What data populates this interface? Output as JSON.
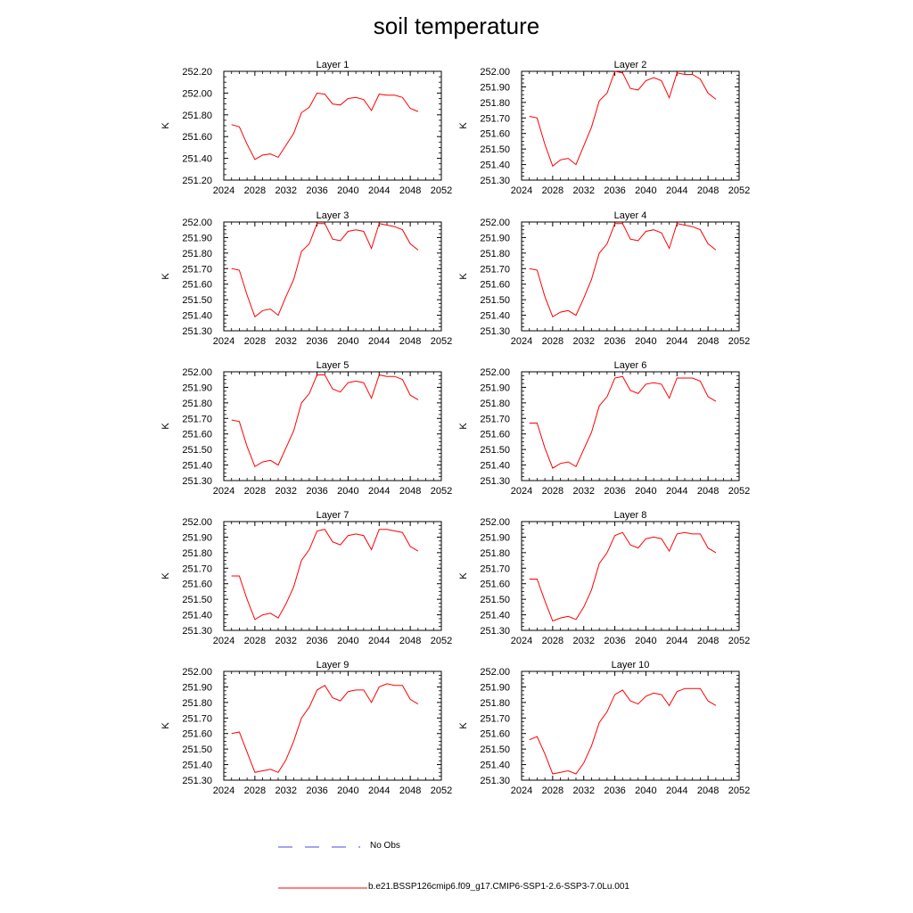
{
  "title": "soil temperature",
  "chart_data": [
    {
      "type": "line",
      "title": "Layer 1",
      "ylabel": "K",
      "xlim": [
        2024,
        2052
      ],
      "ylim": [
        251.2,
        252.2
      ],
      "xticks": [
        2024,
        2028,
        2032,
        2036,
        2040,
        2044,
        2048,
        2052
      ],
      "xticklabels": [
        "2024",
        "2028",
        "2032",
        "2036",
        "2040",
        "2044",
        "2048",
        "2052"
      ],
      "yticks": [
        251.2,
        251.4,
        251.6,
        251.8,
        252.0,
        252.2
      ],
      "yticklabels": [
        "251.20",
        "251.40",
        "251.60",
        "251.80",
        "252.00",
        "252.20"
      ],
      "x": [
        2025,
        2026,
        2027,
        2028,
        2029,
        2030,
        2031,
        2032,
        2033,
        2034,
        2035,
        2036,
        2037,
        2038,
        2039,
        2040,
        2041,
        2042,
        2043,
        2044,
        2045,
        2046,
        2047,
        2048,
        2049
      ],
      "y": [
        251.71,
        251.69,
        251.53,
        251.39,
        251.43,
        251.44,
        251.41,
        251.52,
        251.63,
        251.82,
        251.87,
        252.0,
        251.99,
        251.9,
        251.89,
        251.95,
        251.96,
        251.94,
        251.84,
        251.99,
        251.98,
        251.98,
        251.96,
        251.86,
        251.83
      ]
    },
    {
      "type": "line",
      "title": "Layer 2",
      "ylabel": "K",
      "xlim": [
        2024,
        2052
      ],
      "ylim": [
        251.3,
        252.0
      ],
      "xticks": [
        2024,
        2028,
        2032,
        2036,
        2040,
        2044,
        2048,
        2052
      ],
      "xticklabels": [
        "2024",
        "2028",
        "2032",
        "2036",
        "2040",
        "2044",
        "2048",
        "2052"
      ],
      "yticks": [
        251.3,
        251.4,
        251.5,
        251.6,
        251.7,
        251.8,
        251.9,
        252.0
      ],
      "yticklabels": [
        "251.30",
        "251.40",
        "251.50",
        "251.60",
        "251.70",
        "251.80",
        "251.90",
        "252.00"
      ],
      "x": [
        2025,
        2026,
        2027,
        2028,
        2029,
        2030,
        2031,
        2032,
        2033,
        2034,
        2035,
        2036,
        2037,
        2038,
        2039,
        2040,
        2041,
        2042,
        2043,
        2044,
        2045,
        2046,
        2047,
        2048,
        2049
      ],
      "y": [
        251.71,
        251.7,
        251.53,
        251.39,
        251.43,
        251.44,
        251.4,
        251.52,
        251.64,
        251.81,
        251.86,
        252.0,
        251.99,
        251.89,
        251.88,
        251.94,
        251.96,
        251.94,
        251.83,
        251.99,
        251.98,
        251.98,
        251.95,
        251.86,
        251.82
      ]
    },
    {
      "type": "line",
      "title": "Layer 3",
      "ylabel": "K",
      "xlim": [
        2024,
        2052
      ],
      "ylim": [
        251.3,
        252.0
      ],
      "xticks": [
        2024,
        2028,
        2032,
        2036,
        2040,
        2044,
        2048,
        2052
      ],
      "xticklabels": [
        "2024",
        "2028",
        "2032",
        "2036",
        "2040",
        "2044",
        "2048",
        "2052"
      ],
      "yticks": [
        251.3,
        251.4,
        251.5,
        251.6,
        251.7,
        251.8,
        251.9,
        252.0
      ],
      "yticklabels": [
        "251.30",
        "251.40",
        "251.50",
        "251.60",
        "251.70",
        "251.80",
        "251.90",
        "252.00"
      ],
      "x": [
        2025,
        2026,
        2027,
        2028,
        2029,
        2030,
        2031,
        2032,
        2033,
        2034,
        2035,
        2036,
        2037,
        2038,
        2039,
        2040,
        2041,
        2042,
        2043,
        2044,
        2045,
        2046,
        2047,
        2048,
        2049
      ],
      "y": [
        251.7,
        251.69,
        251.53,
        251.39,
        251.43,
        251.44,
        251.4,
        251.52,
        251.63,
        251.81,
        251.86,
        251.99,
        251.99,
        251.89,
        251.88,
        251.94,
        251.95,
        251.94,
        251.83,
        251.99,
        251.98,
        251.97,
        251.95,
        251.86,
        251.82
      ]
    },
    {
      "type": "line",
      "title": "Layer 4",
      "ylabel": "K",
      "xlim": [
        2024,
        2052
      ],
      "ylim": [
        251.3,
        252.0
      ],
      "xticks": [
        2024,
        2028,
        2032,
        2036,
        2040,
        2044,
        2048,
        2052
      ],
      "xticklabels": [
        "2024",
        "2028",
        "2032",
        "2036",
        "2040",
        "2044",
        "2048",
        "2052"
      ],
      "yticks": [
        251.3,
        251.4,
        251.5,
        251.6,
        251.7,
        251.8,
        251.9,
        252.0
      ],
      "yticklabels": [
        "251.30",
        "251.40",
        "251.50",
        "251.60",
        "251.70",
        "251.80",
        "251.90",
        "252.00"
      ],
      "x": [
        2025,
        2026,
        2027,
        2028,
        2029,
        2030,
        2031,
        2032,
        2033,
        2034,
        2035,
        2036,
        2037,
        2038,
        2039,
        2040,
        2041,
        2042,
        2043,
        2044,
        2045,
        2046,
        2047,
        2048,
        2049
      ],
      "y": [
        251.7,
        251.69,
        251.52,
        251.39,
        251.42,
        251.43,
        251.4,
        251.51,
        251.63,
        251.8,
        251.86,
        251.99,
        251.99,
        251.89,
        251.88,
        251.94,
        251.95,
        251.93,
        251.83,
        251.99,
        251.98,
        251.97,
        251.95,
        251.86,
        251.82
      ]
    },
    {
      "type": "line",
      "title": "Layer 5",
      "ylabel": "K",
      "xlim": [
        2024,
        2052
      ],
      "ylim": [
        251.3,
        252.0
      ],
      "xticks": [
        2024,
        2028,
        2032,
        2036,
        2040,
        2044,
        2048,
        2052
      ],
      "xticklabels": [
        "2024",
        "2028",
        "2032",
        "2036",
        "2040",
        "2044",
        "2048",
        "2052"
      ],
      "yticks": [
        251.3,
        251.4,
        251.5,
        251.6,
        251.7,
        251.8,
        251.9,
        252.0
      ],
      "yticklabels": [
        "251.30",
        "251.40",
        "251.50",
        "251.60",
        "251.70",
        "251.80",
        "251.90",
        "252.00"
      ],
      "x": [
        2025,
        2026,
        2027,
        2028,
        2029,
        2030,
        2031,
        2032,
        2033,
        2034,
        2035,
        2036,
        2037,
        2038,
        2039,
        2040,
        2041,
        2042,
        2043,
        2044,
        2045,
        2046,
        2047,
        2048,
        2049
      ],
      "y": [
        251.69,
        251.68,
        251.52,
        251.39,
        251.42,
        251.43,
        251.4,
        251.51,
        251.62,
        251.8,
        251.86,
        251.98,
        251.98,
        251.89,
        251.87,
        251.93,
        251.94,
        251.93,
        251.83,
        251.98,
        251.97,
        251.97,
        251.95,
        251.85,
        251.82
      ]
    },
    {
      "type": "line",
      "title": "Layer 6",
      "ylabel": "K",
      "xlim": [
        2024,
        2052
      ],
      "ylim": [
        251.3,
        252.0
      ],
      "xticks": [
        2024,
        2028,
        2032,
        2036,
        2040,
        2044,
        2048,
        2052
      ],
      "xticklabels": [
        "2024",
        "2028",
        "2032",
        "2036",
        "2040",
        "2044",
        "2048",
        "2052"
      ],
      "yticks": [
        251.3,
        251.4,
        251.5,
        251.6,
        251.7,
        251.8,
        251.9,
        252.0
      ],
      "yticklabels": [
        "251.30",
        "251.40",
        "251.50",
        "251.60",
        "251.70",
        "251.80",
        "251.90",
        "252.00"
      ],
      "x": [
        2025,
        2026,
        2027,
        2028,
        2029,
        2030,
        2031,
        2032,
        2033,
        2034,
        2035,
        2036,
        2037,
        2038,
        2039,
        2040,
        2041,
        2042,
        2043,
        2044,
        2045,
        2046,
        2047,
        2048,
        2049
      ],
      "y": [
        251.67,
        251.67,
        251.51,
        251.38,
        251.41,
        251.42,
        251.39,
        251.5,
        251.61,
        251.78,
        251.84,
        251.96,
        251.97,
        251.88,
        251.86,
        251.92,
        251.93,
        251.92,
        251.83,
        251.96,
        251.96,
        251.96,
        251.94,
        251.84,
        251.81
      ]
    },
    {
      "type": "line",
      "title": "Layer 7",
      "ylabel": "K",
      "xlim": [
        2024,
        2052
      ],
      "ylim": [
        251.3,
        252.0
      ],
      "xticks": [
        2024,
        2028,
        2032,
        2036,
        2040,
        2044,
        2048,
        2052
      ],
      "xticklabels": [
        "2024",
        "2028",
        "2032",
        "2036",
        "2040",
        "2044",
        "2048",
        "2052"
      ],
      "yticks": [
        251.3,
        251.4,
        251.5,
        251.6,
        251.7,
        251.8,
        251.9,
        252.0
      ],
      "yticklabels": [
        "251.30",
        "251.40",
        "251.50",
        "251.60",
        "251.70",
        "251.80",
        "251.90",
        "252.00"
      ],
      "x": [
        2025,
        2026,
        2027,
        2028,
        2029,
        2030,
        2031,
        2032,
        2033,
        2034,
        2035,
        2036,
        2037,
        2038,
        2039,
        2040,
        2041,
        2042,
        2043,
        2044,
        2045,
        2046,
        2047,
        2048,
        2049
      ],
      "y": [
        251.65,
        251.65,
        251.5,
        251.37,
        251.4,
        251.41,
        251.38,
        251.47,
        251.58,
        251.75,
        251.82,
        251.94,
        251.95,
        251.87,
        251.85,
        251.91,
        251.92,
        251.91,
        251.82,
        251.95,
        251.95,
        251.94,
        251.93,
        251.84,
        251.81
      ]
    },
    {
      "type": "line",
      "title": "Layer 8",
      "ylabel": "K",
      "xlim": [
        2024,
        2052
      ],
      "ylim": [
        251.3,
        252.0
      ],
      "xticks": [
        2024,
        2028,
        2032,
        2036,
        2040,
        2044,
        2048,
        2052
      ],
      "xticklabels": [
        "2024",
        "2028",
        "2032",
        "2036",
        "2040",
        "2044",
        "2048",
        "2052"
      ],
      "yticks": [
        251.3,
        251.4,
        251.5,
        251.6,
        251.7,
        251.8,
        251.9,
        252.0
      ],
      "yticklabels": [
        "251.30",
        "251.40",
        "251.50",
        "251.60",
        "251.70",
        "251.80",
        "251.90",
        "252.00"
      ],
      "x": [
        2025,
        2026,
        2027,
        2028,
        2029,
        2030,
        2031,
        2032,
        2033,
        2034,
        2035,
        2036,
        2037,
        2038,
        2039,
        2040,
        2041,
        2042,
        2043,
        2044,
        2045,
        2046,
        2047,
        2048,
        2049
      ],
      "y": [
        251.63,
        251.63,
        251.49,
        251.36,
        251.38,
        251.39,
        251.37,
        251.45,
        251.56,
        251.73,
        251.8,
        251.91,
        251.93,
        251.85,
        251.83,
        251.89,
        251.9,
        251.89,
        251.81,
        251.92,
        251.93,
        251.92,
        251.92,
        251.83,
        251.8
      ]
    },
    {
      "type": "line",
      "title": "Layer 9",
      "ylabel": "K",
      "xlim": [
        2024,
        2052
      ],
      "ylim": [
        251.3,
        252.0
      ],
      "xticks": [
        2024,
        2028,
        2032,
        2036,
        2040,
        2044,
        2048,
        2052
      ],
      "xticklabels": [
        "2024",
        "2028",
        "2032",
        "2036",
        "2040",
        "2044",
        "2048",
        "2052"
      ],
      "yticks": [
        251.3,
        251.4,
        251.5,
        251.6,
        251.7,
        251.8,
        251.9,
        252.0
      ],
      "yticklabels": [
        "251.30",
        "251.40",
        "251.50",
        "251.60",
        "251.70",
        "251.80",
        "251.90",
        "252.00"
      ],
      "x": [
        2025,
        2026,
        2027,
        2028,
        2029,
        2030,
        2031,
        2032,
        2033,
        2034,
        2035,
        2036,
        2037,
        2038,
        2039,
        2040,
        2041,
        2042,
        2043,
        2044,
        2045,
        2046,
        2047,
        2048,
        2049
      ],
      "y": [
        251.6,
        251.61,
        251.48,
        251.35,
        251.36,
        251.37,
        251.35,
        251.43,
        251.55,
        251.7,
        251.77,
        251.88,
        251.91,
        251.83,
        251.81,
        251.87,
        251.88,
        251.88,
        251.8,
        251.9,
        251.92,
        251.91,
        251.91,
        251.82,
        251.79
      ]
    },
    {
      "type": "line",
      "title": "Layer 10",
      "ylabel": "K",
      "xlim": [
        2024,
        2052
      ],
      "ylim": [
        251.3,
        252.0
      ],
      "xticks": [
        2024,
        2028,
        2032,
        2036,
        2040,
        2044,
        2048,
        2052
      ],
      "xticklabels": [
        "2024",
        "2028",
        "2032",
        "2036",
        "2040",
        "2044",
        "2048",
        "2052"
      ],
      "yticks": [
        251.3,
        251.4,
        251.5,
        251.6,
        251.7,
        251.8,
        251.9,
        252.0
      ],
      "yticklabels": [
        "251.30",
        "251.40",
        "251.50",
        "251.60",
        "251.70",
        "251.80",
        "251.90",
        "252.00"
      ],
      "x": [
        2025,
        2026,
        2027,
        2028,
        2029,
        2030,
        2031,
        2032,
        2033,
        2034,
        2035,
        2036,
        2037,
        2038,
        2039,
        2040,
        2041,
        2042,
        2043,
        2044,
        2045,
        2046,
        2047,
        2048,
        2049
      ],
      "y": [
        251.56,
        251.58,
        251.47,
        251.34,
        251.35,
        251.36,
        251.34,
        251.41,
        251.52,
        251.67,
        251.74,
        251.85,
        251.88,
        251.81,
        251.79,
        251.84,
        251.86,
        251.85,
        251.78,
        251.87,
        251.89,
        251.89,
        251.89,
        251.81,
        251.78
      ]
    }
  ],
  "legend": {
    "obs_label": "No Obs",
    "obs_color": "#4a4ad8",
    "model_label": "b.e21.BSSP126cmip6.f09_g17.CMIP6-SSP1-2.6-SSP3-7.0Lu.001",
    "model_color": "#ff0000"
  }
}
